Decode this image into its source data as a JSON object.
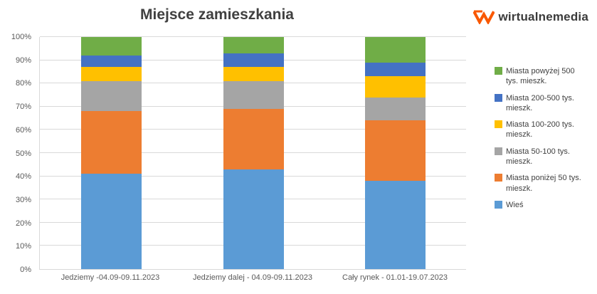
{
  "logo": {
    "text": "wirtualnemedia"
  },
  "logo_color": "#F95800",
  "chart_data": {
    "type": "bar",
    "stacked": true,
    "percent": true,
    "title": "Miejsce zamieszkania",
    "categories": [
      "Jedziemy -04.09-09.11.2023",
      "Jedziemy dalej - 04.09-09.11.2023",
      "Cały rynek - 01.01-19.07.2023"
    ],
    "series": [
      {
        "name": "Wieś",
        "color": "#5B9BD5",
        "values": [
          41,
          43,
          38
        ]
      },
      {
        "name": "Miasta poniżej 50 tys. mieszk.",
        "color": "#ED7D31",
        "values": [
          27,
          26,
          26
        ]
      },
      {
        "name": "Miasta 50-100 tys. mieszk.",
        "color": "#A5A5A5",
        "values": [
          13,
          12,
          10
        ]
      },
      {
        "name": "Miasta 100-200 tys. mieszk.",
        "color": "#FFC000",
        "values": [
          6,
          6,
          9
        ]
      },
      {
        "name": "Miasta 200-500 tys. mieszk.",
        "color": "#4472C4",
        "values": [
          5,
          6,
          6
        ]
      },
      {
        "name": "Miasta powyżej 500 tys. mieszk.",
        "color": "#70AD47",
        "values": [
          8,
          7,
          11
        ]
      }
    ],
    "ylim": [
      0,
      100
    ],
    "y_tick_step": 10,
    "y_tick_suffix": "%",
    "grid": true,
    "legend_position": "right",
    "legend_order": "reversed"
  }
}
